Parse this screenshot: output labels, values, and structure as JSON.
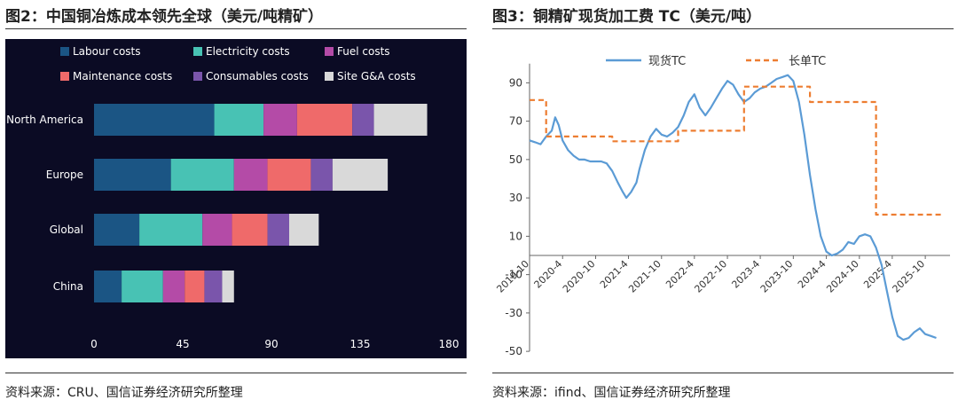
{
  "left": {
    "title": "图2：中国铜冶炼成本领先全球（美元/吨精矿）",
    "source": "资料来源：CRU、国信证券经济研究所整理"
  },
  "right": {
    "title": "图3：铜精矿现货加工费 TC（美元/吨）",
    "source": "资料来源：ifind、国信证券经济研究所整理"
  },
  "chart_data": [
    {
      "type": "bar",
      "orientation": "horizontal",
      "stacked": true,
      "categories": [
        "North America",
        "Europe",
        "Global",
        "China"
      ],
      "series": [
        {
          "name": "Labour costs",
          "color": "#1b5584",
          "values": [
            61,
            39,
            23,
            14
          ]
        },
        {
          "name": "Electricity costs",
          "color": "#48c2b4",
          "values": [
            25,
            32,
            32,
            21
          ]
        },
        {
          "name": "Fuel costs",
          "color": "#b44ba7",
          "values": [
            17,
            17,
            15,
            11
          ]
        },
        {
          "name": "Maintenance costs",
          "color": "#ef6a6a",
          "values": [
            28,
            22,
            18,
            10
          ]
        },
        {
          "name": "Consumables costs",
          "color": "#7a55ab",
          "values": [
            11,
            11,
            11,
            9
          ]
        },
        {
          "name": "Site G&A costs",
          "color": "#d9d9d9",
          "values": [
            27,
            28,
            15,
            6
          ]
        }
      ],
      "xlim": [
        0,
        180
      ],
      "xticks": [
        "0",
        "45",
        "90",
        "135",
        "180"
      ],
      "legend": "top",
      "background": "#0b0b24"
    },
    {
      "type": "line",
      "series": [
        {
          "name": "现货TC",
          "color": "#5b9bd5",
          "style": "solid",
          "points": [
            [
              "2019-10-01",
              60
            ],
            [
              "2019-11-01",
              59
            ],
            [
              "2019-12-01",
              58
            ],
            [
              "2020-01-01",
              62
            ],
            [
              "2020-02-01",
              65
            ],
            [
              "2020-02-20",
              72
            ],
            [
              "2020-03-10",
              68
            ],
            [
              "2020-04-01",
              60
            ],
            [
              "2020-05-01",
              55
            ],
            [
              "2020-06-01",
              52
            ],
            [
              "2020-07-01",
              50
            ],
            [
              "2020-08-01",
              50
            ],
            [
              "2020-09-01",
              49
            ],
            [
              "2020-10-01",
              49
            ],
            [
              "2020-11-01",
              49
            ],
            [
              "2020-12-01",
              48
            ],
            [
              "2021-01-01",
              44
            ],
            [
              "2021-02-01",
              38
            ],
            [
              "2021-03-01",
              33
            ],
            [
              "2021-03-20",
              30
            ],
            [
              "2021-04-15",
              33
            ],
            [
              "2021-05-15",
              38
            ],
            [
              "2021-06-01",
              45
            ],
            [
              "2021-07-01",
              55
            ],
            [
              "2021-08-01",
              62
            ],
            [
              "2021-09-01",
              66
            ],
            [
              "2021-10-01",
              63
            ],
            [
              "2021-11-01",
              62
            ],
            [
              "2021-12-01",
              64
            ],
            [
              "2022-01-01",
              67
            ],
            [
              "2022-02-01",
              73
            ],
            [
              "2022-03-01",
              80
            ],
            [
              "2022-04-01",
              84
            ],
            [
              "2022-05-01",
              77
            ],
            [
              "2022-06-01",
              73
            ],
            [
              "2022-07-01",
              77
            ],
            [
              "2022-08-01",
              82
            ],
            [
              "2022-09-01",
              87
            ],
            [
              "2022-10-01",
              91
            ],
            [
              "2022-11-01",
              89
            ],
            [
              "2022-12-01",
              84
            ],
            [
              "2023-01-01",
              80
            ],
            [
              "2023-02-01",
              82
            ],
            [
              "2023-03-01",
              85
            ],
            [
              "2023-04-01",
              87
            ],
            [
              "2023-05-01",
              88
            ],
            [
              "2023-06-01",
              90
            ],
            [
              "2023-07-01",
              92
            ],
            [
              "2023-08-01",
              93
            ],
            [
              "2023-09-01",
              94
            ],
            [
              "2023-10-01",
              91
            ],
            [
              "2023-11-01",
              80
            ],
            [
              "2023-12-01",
              63
            ],
            [
              "2024-01-01",
              42
            ],
            [
              "2024-02-01",
              24
            ],
            [
              "2024-03-01",
              10
            ],
            [
              "2024-04-01",
              2
            ],
            [
              "2024-05-01",
              0
            ],
            [
              "2024-06-01",
              1
            ],
            [
              "2024-07-01",
              3
            ],
            [
              "2024-08-01",
              7
            ],
            [
              "2024-09-01",
              6
            ],
            [
              "2024-10-01",
              10
            ],
            [
              "2024-11-01",
              11
            ],
            [
              "2024-12-01",
              10
            ],
            [
              "2025-01-01",
              4
            ],
            [
              "2025-02-01",
              -5
            ],
            [
              "2025-03-01",
              -18
            ],
            [
              "2025-04-01",
              -32
            ],
            [
              "2025-05-01",
              -42
            ],
            [
              "2025-06-01",
              -44
            ],
            [
              "2025-07-01",
              -43
            ],
            [
              "2025-08-01",
              -40
            ],
            [
              "2025-09-01",
              -38
            ],
            [
              "2025-10-01",
              -41
            ],
            [
              "2025-11-01",
              -42
            ],
            [
              "2025-12-01",
              -43
            ]
          ]
        },
        {
          "name": "长单TC",
          "color": "#ed7d31",
          "style": "dashed",
          "points": [
            [
              "2019-10-01",
              81
            ],
            [
              "2019-12-31",
              81
            ],
            [
              "2020-01-01",
              62
            ],
            [
              "2020-12-31",
              62
            ],
            [
              "2021-01-01",
              59.5
            ],
            [
              "2021-12-31",
              59.5
            ],
            [
              "2022-01-01",
              65
            ],
            [
              "2022-12-31",
              65
            ],
            [
              "2023-01-01",
              88
            ],
            [
              "2023-12-31",
              88
            ],
            [
              "2024-01-01",
              80
            ],
            [
              "2024-12-31",
              80
            ],
            [
              "2025-01-01",
              21.25
            ],
            [
              "2025-12-31",
              21.25
            ]
          ]
        }
      ],
      "ylim": [
        -50,
        100
      ],
      "yticks": [
        "-50",
        "-30",
        "-10",
        "10",
        "30",
        "50",
        "70",
        "90"
      ],
      "xticks": [
        "2019-10",
        "2020-4",
        "2020-10",
        "2021-4",
        "2021-10",
        "2022-4",
        "2022-10",
        "2023-4",
        "2023-10",
        "2024-4",
        "2024-10",
        "2025-4",
        "2025-10"
      ],
      "xlim": [
        "2019-10-01",
        "2026-02-15"
      ],
      "legend": "top"
    }
  ]
}
